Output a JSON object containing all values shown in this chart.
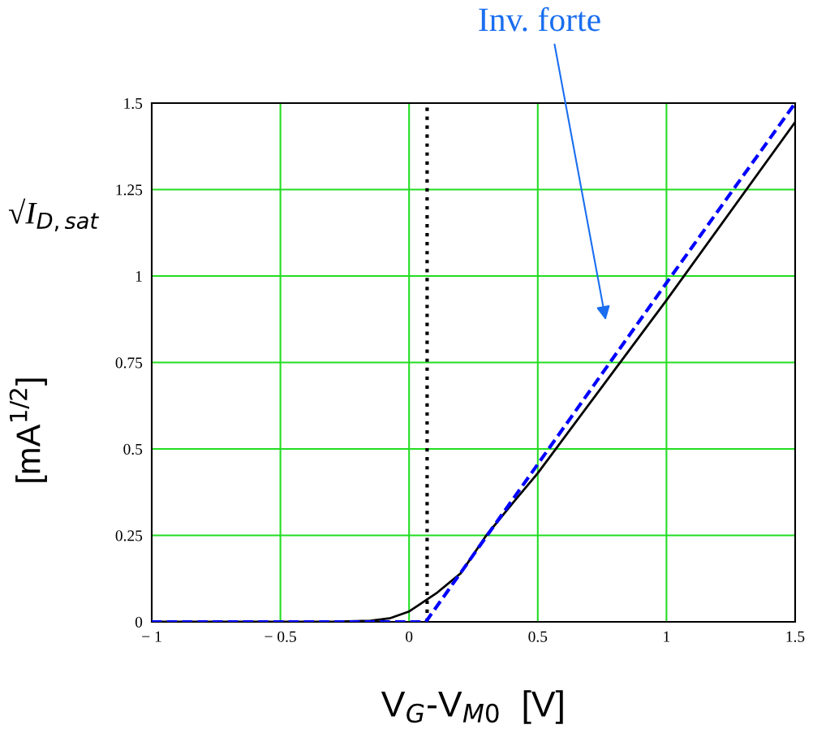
{
  "chart_data": {
    "type": "line",
    "xlabel": "V$_{G}$-V$_{M0}$  [V]",
    "ylabel": "[mA$^{1/2}$]",
    "annotations": [
      "√I$_{D,sat}$",
      "Inv. forte"
    ],
    "series": [
      {
        "color": "#000000",
        "line_style": "solid",
        "x": [
          -1,
          -0.3,
          -0.15,
          -0.076,
          0,
          0.03,
          0.11,
          0.2,
          0.3,
          0.41,
          0.5,
          0.75,
          1.0,
          1.5
        ],
        "values": [
          0,
          0,
          0.003,
          0.01,
          0.03,
          0.045,
          0.085,
          0.14,
          0.25,
          0.35,
          0.43,
          0.68,
          0.93,
          1.445
        ]
      },
      {
        "color": "#0000ff",
        "line_style": "dashed",
        "x": [
          -1,
          0.065,
          1.0,
          1.5
        ],
        "values": [
          0,
          0,
          0.98,
          1.5
        ]
      }
    ],
    "ref_lines": [
      {
        "axis": "x",
        "value": 0.07,
        "color": "#000000",
        "line_style": "dotted"
      }
    ],
    "xlim": [
      -1,
      1.5
    ],
    "ylim": [
      0,
      1.5
    ],
    "xticks": [
      {
        "value": -1,
        "label": "− 1"
      },
      {
        "value": -0.5,
        "label": "− 0.5"
      },
      0,
      0.5,
      1,
      1.5
    ],
    "yticks": [
      0,
      0.25,
      0.5,
      0.75,
      1,
      1.25,
      1.5
    ],
    "grid": true,
    "marker": "none"
  }
}
